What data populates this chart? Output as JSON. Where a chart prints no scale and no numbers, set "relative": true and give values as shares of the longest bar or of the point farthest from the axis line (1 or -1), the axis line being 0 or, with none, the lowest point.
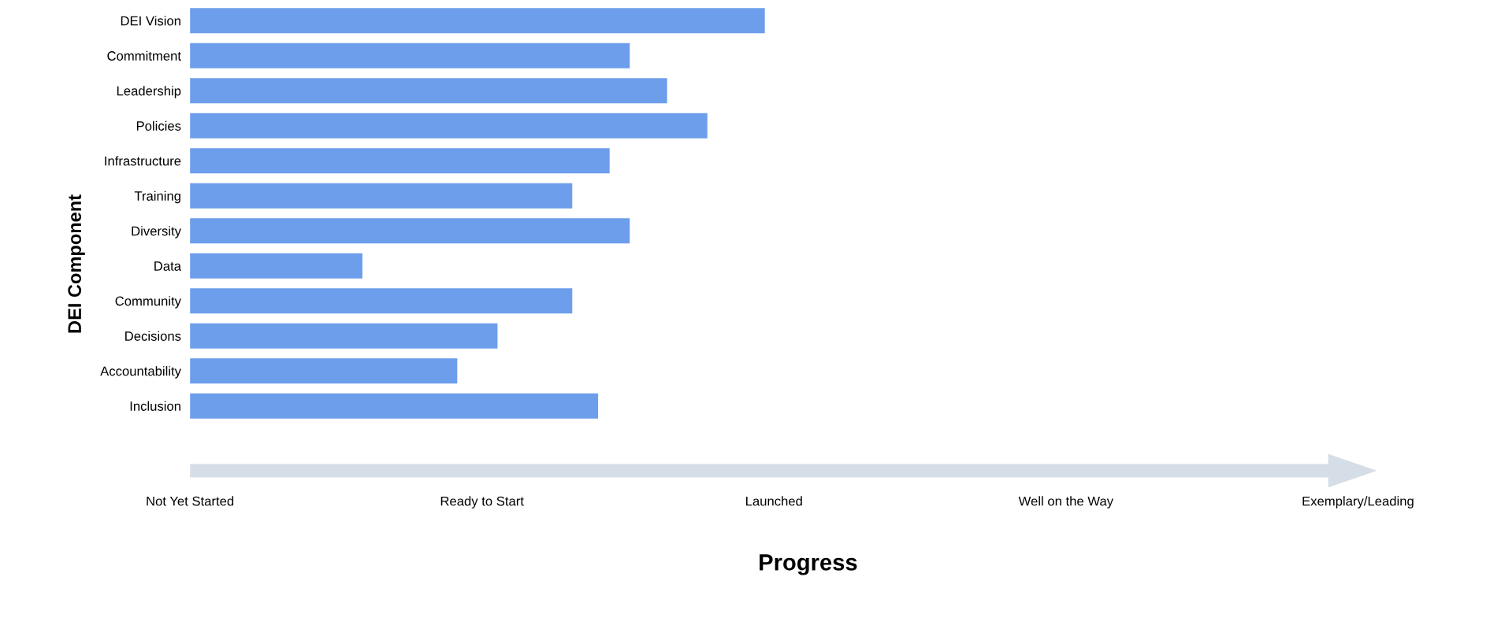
{
  "chart_data": {
    "type": "bar",
    "orientation": "horizontal",
    "relative": true,
    "categories": [
      "DEI Vision",
      "Commitment",
      "Leadership",
      "Policies",
      "Infrastructure",
      "Training",
      "Diversity",
      "Data",
      "Community",
      "Decisions",
      "Accountability",
      "Inclusion"
    ],
    "values": [
      1,
      0.765,
      0.83,
      0.9,
      0.73,
      0.665,
      0.765,
      0.3,
      0.665,
      0.535,
      0.465,
      0.71
    ],
    "color": "#6d9eeb",
    "annotations": [
      "Not Yet Started",
      "Ready to Start",
      "Launched",
      "Well on the Way",
      "Exemplary/Leading",
      "Progress"
    ],
    "ylabel": "DEI Component",
    "grid": false,
    "legend": false
  }
}
